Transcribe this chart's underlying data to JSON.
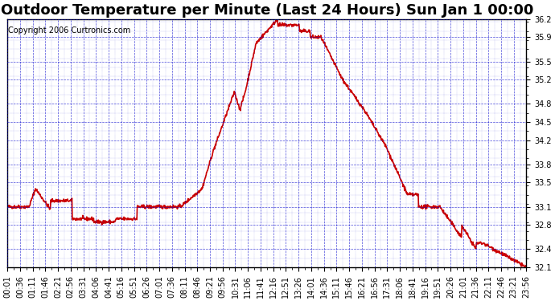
{
  "title": "Outdoor Temperature per Minute (Last 24 Hours) Sun Jan 1 00:00",
  "copyright": "Copyright 2006 Curtronics.com",
  "background_color": "#ffffff",
  "plot_bg_color": "#ffffff",
  "line_color": "#cc0000",
  "grid_color": "#0000cc",
  "text_color": "#000000",
  "ylim": [
    32.1,
    36.2
  ],
  "yticks": [
    32.1,
    32.4,
    32.8,
    33.1,
    33.5,
    33.8,
    34.2,
    34.5,
    34.8,
    35.2,
    35.5,
    35.9,
    36.2
  ],
  "xtick_labels": [
    "00:01",
    "00:36",
    "01:11",
    "01:46",
    "02:21",
    "02:56",
    "03:31",
    "04:06",
    "04:41",
    "05:16",
    "05:51",
    "06:26",
    "07:01",
    "07:36",
    "08:11",
    "08:46",
    "09:21",
    "09:56",
    "10:31",
    "11:06",
    "11:41",
    "12:16",
    "12:51",
    "13:26",
    "14:01",
    "14:36",
    "15:11",
    "15:46",
    "16:21",
    "16:56",
    "17:31",
    "18:06",
    "18:41",
    "19:16",
    "19:51",
    "20:26",
    "21:01",
    "21:36",
    "22:11",
    "22:46",
    "23:21",
    "23:56"
  ],
  "n_points": 1440,
  "title_fontsize": 13,
  "copyright_fontsize": 7,
  "tick_fontsize": 7,
  "line_width": 1.2
}
